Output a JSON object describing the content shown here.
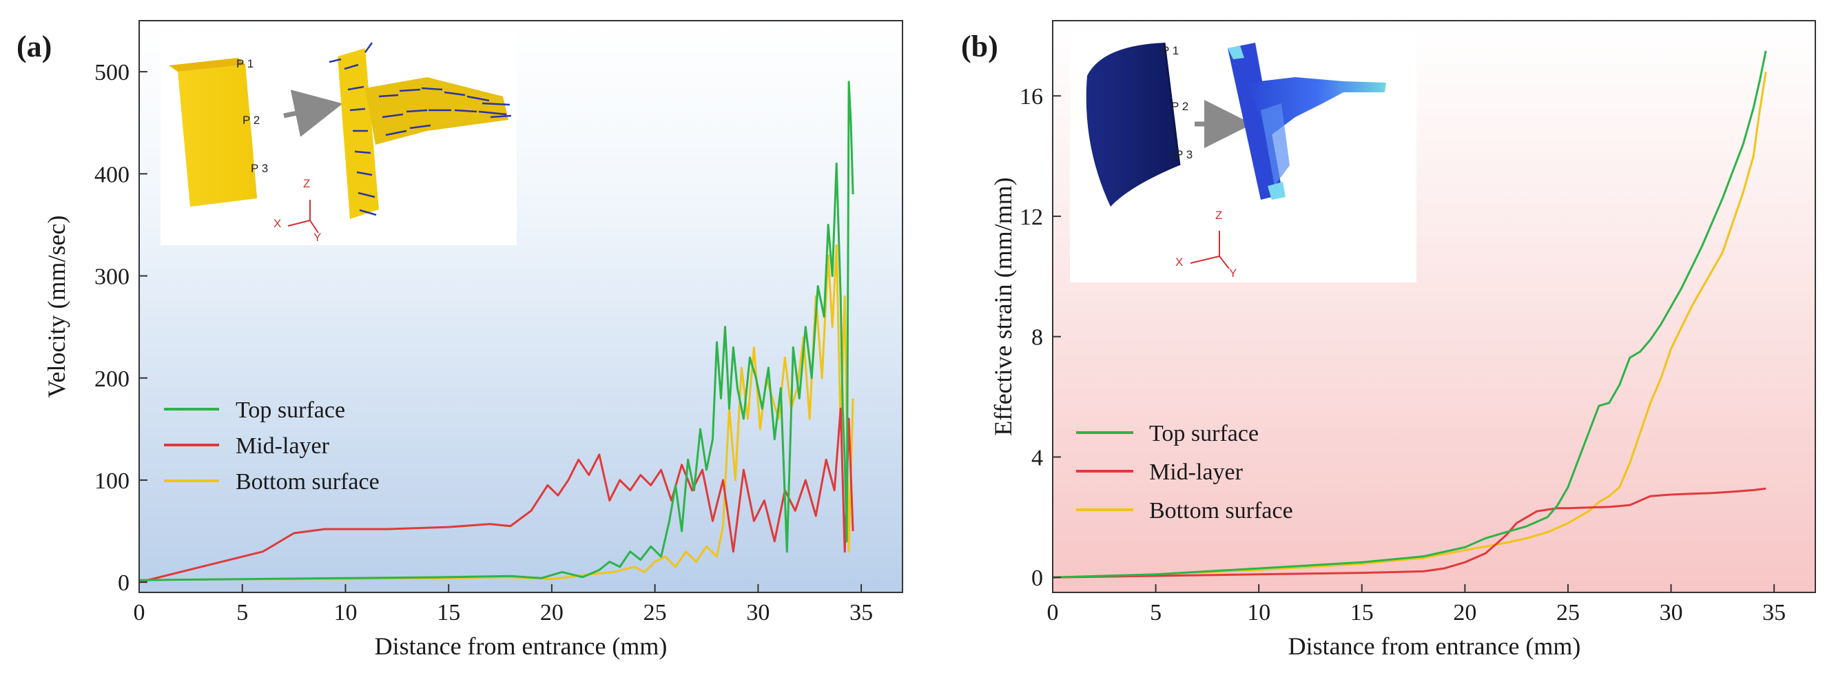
{
  "chart_data": [
    {
      "type": "line",
      "panel_label": "(a)",
      "xlabel": "Distance from entrance (mm)",
      "ylabel": "Velocity (mm/sec)",
      "xlim": [
        0,
        37
      ],
      "ylim": [
        -10,
        550
      ],
      "xticks": [
        0,
        5,
        10,
        15,
        20,
        25,
        30,
        35
      ],
      "yticks": [
        0,
        100,
        200,
        300,
        400,
        500
      ],
      "background": "blue-gradient",
      "legend_position": "middle-left",
      "inset": {
        "description": "extruded billet to T-section velocity vector field",
        "point_labels": [
          "P 1",
          "P 2",
          "P 3"
        ],
        "axis_labels": [
          "Z",
          "X",
          "Y"
        ]
      },
      "series": [
        {
          "name": "Top surface",
          "color": "#2db34a",
          "x": [
            0,
            5,
            10,
            15,
            18,
            19.5,
            20.5,
            21.5,
            22.3,
            22.8,
            23.3,
            23.8,
            24.3,
            24.8,
            25.3,
            25.7,
            26.0,
            26.3,
            26.6,
            26.9,
            27.2,
            27.5,
            27.8,
            28.0,
            28.2,
            28.4,
            28.6,
            28.8,
            29.0,
            29.3,
            29.6,
            29.9,
            30.2,
            30.5,
            30.8,
            31.1,
            31.4,
            31.7,
            32.0,
            32.3,
            32.6,
            32.9,
            33.2,
            33.4,
            33.6,
            33.8,
            34.0,
            34.1,
            34.2,
            34.3,
            34.4,
            34.5,
            34.6
          ],
          "values": [
            2,
            3,
            4,
            5,
            6,
            4,
            10,
            5,
            12,
            20,
            15,
            30,
            22,
            35,
            25,
            60,
            95,
            50,
            120,
            90,
            150,
            110,
            140,
            235,
            180,
            250,
            170,
            230,
            190,
            160,
            220,
            200,
            170,
            210,
            140,
            190,
            30,
            230,
            180,
            250,
            200,
            290,
            260,
            350,
            300,
            410,
            280,
            170,
            120,
            40,
            490,
            450,
            380
          ]
        },
        {
          "name": "Mid-layer",
          "color": "#e03a3a",
          "x": [
            0,
            3,
            6,
            7.5,
            9,
            12,
            15,
            17,
            18,
            19,
            19.8,
            20.3,
            20.8,
            21.3,
            21.8,
            22.3,
            22.8,
            23.3,
            23.8,
            24.3,
            24.8,
            25.3,
            25.8,
            26.3,
            26.8,
            27.3,
            27.8,
            28.3,
            28.8,
            29.3,
            29.8,
            30.3,
            30.8,
            31.3,
            31.8,
            32.3,
            32.8,
            33.3,
            33.7,
            34.0,
            34.2,
            34.4,
            34.6
          ],
          "values": [
            0,
            15,
            30,
            48,
            52,
            52,
            54,
            57,
            55,
            70,
            95,
            85,
            100,
            120,
            105,
            125,
            80,
            100,
            90,
            105,
            95,
            110,
            80,
            115,
            90,
            110,
            60,
            100,
            30,
            110,
            60,
            80,
            40,
            90,
            70,
            100,
            65,
            120,
            90,
            170,
            30,
            160,
            50
          ]
        },
        {
          "name": "Bottom surface",
          "color": "#f0c419",
          "x": [
            0,
            5,
            10,
            15,
            18,
            20,
            22,
            23,
            24,
            24.5,
            25,
            25.5,
            26,
            26.5,
            27,
            27.5,
            28,
            28.3,
            28.6,
            28.9,
            29.2,
            29.5,
            29.8,
            30.1,
            30.4,
            30.7,
            31.0,
            31.3,
            31.6,
            31.9,
            32.2,
            32.5,
            32.8,
            33.1,
            33.4,
            33.6,
            33.8,
            34.0,
            34.2,
            34.4,
            34.6
          ],
          "values": [
            2,
            3,
            3,
            4,
            5,
            3,
            8,
            10,
            15,
            10,
            20,
            25,
            15,
            30,
            20,
            35,
            25,
            55,
            170,
            100,
            210,
            160,
            230,
            150,
            200,
            180,
            160,
            220,
            170,
            190,
            240,
            160,
            280,
            200,
            320,
            250,
            330,
            150,
            280,
            30,
            180
          ]
        }
      ]
    },
    {
      "type": "line",
      "panel_label": "(b)",
      "xlabel": "Distance from entrance (mm)",
      "ylabel": "Effective strain (mm/mm)",
      "xlim": [
        0,
        37
      ],
      "ylim": [
        -0.5,
        18.5
      ],
      "xticks": [
        0,
        5,
        10,
        15,
        20,
        25,
        30,
        35
      ],
      "yticks": [
        0,
        4,
        8,
        12,
        16
      ],
      "background": "red-gradient",
      "legend_position": "middle-left",
      "inset": {
        "description": "billet to T-section effective strain contour",
        "point_labels": [
          "P 1",
          "P 2",
          "P 3"
        ],
        "axis_labels": [
          "Z",
          "X",
          "Y"
        ]
      },
      "series": [
        {
          "name": "Top surface",
          "color": "#2db34a",
          "x": [
            0,
            5,
            10,
            15,
            18,
            20,
            21,
            22,
            23,
            24,
            24.5,
            25,
            25.5,
            26,
            26.5,
            27,
            27.5,
            28,
            28.5,
            29,
            29.5,
            30,
            30.5,
            31,
            31.5,
            32,
            32.5,
            33,
            33.5,
            34,
            34.3,
            34.6
          ],
          "values": [
            0,
            0.1,
            0.3,
            0.5,
            0.7,
            1.0,
            1.3,
            1.5,
            1.7,
            2.0,
            2.4,
            3.0,
            3.9,
            4.8,
            5.7,
            5.8,
            6.4,
            7.3,
            7.5,
            7.9,
            8.4,
            9.0,
            9.6,
            10.3,
            11.0,
            11.8,
            12.6,
            13.5,
            14.4,
            15.6,
            16.5,
            17.5
          ]
        },
        {
          "name": "Mid-layer",
          "color": "#e03a3a",
          "x": [
            0,
            5,
            10,
            15,
            18,
            19,
            20,
            21,
            21.5,
            22,
            22.5,
            23,
            23.5,
            24,
            24.5,
            25,
            26,
            27,
            28,
            29,
            30,
            31,
            32,
            33,
            34,
            34.6
          ],
          "values": [
            0,
            0.05,
            0.1,
            0.15,
            0.2,
            0.3,
            0.5,
            0.8,
            1.1,
            1.4,
            1.8,
            2.0,
            2.2,
            2.25,
            2.3,
            2.3,
            2.32,
            2.34,
            2.4,
            2.7,
            2.75,
            2.78,
            2.8,
            2.85,
            2.9,
            2.95
          ]
        },
        {
          "name": "Bottom surface",
          "color": "#f0c419",
          "x": [
            0,
            5,
            10,
            15,
            18,
            20,
            22,
            23,
            24,
            25,
            26,
            26.5,
            27,
            27.5,
            28,
            28.5,
            29,
            29.5,
            30,
            30.5,
            31,
            31.5,
            32,
            32.5,
            33,
            33.5,
            34,
            34.3,
            34.6
          ],
          "values": [
            0,
            0.1,
            0.25,
            0.45,
            0.65,
            0.9,
            1.15,
            1.3,
            1.5,
            1.8,
            2.2,
            2.5,
            2.7,
            3.0,
            3.8,
            4.8,
            5.8,
            6.6,
            7.6,
            8.3,
            9.0,
            9.6,
            10.2,
            10.8,
            11.8,
            12.8,
            14.0,
            15.5,
            16.8
          ]
        }
      ]
    }
  ]
}
